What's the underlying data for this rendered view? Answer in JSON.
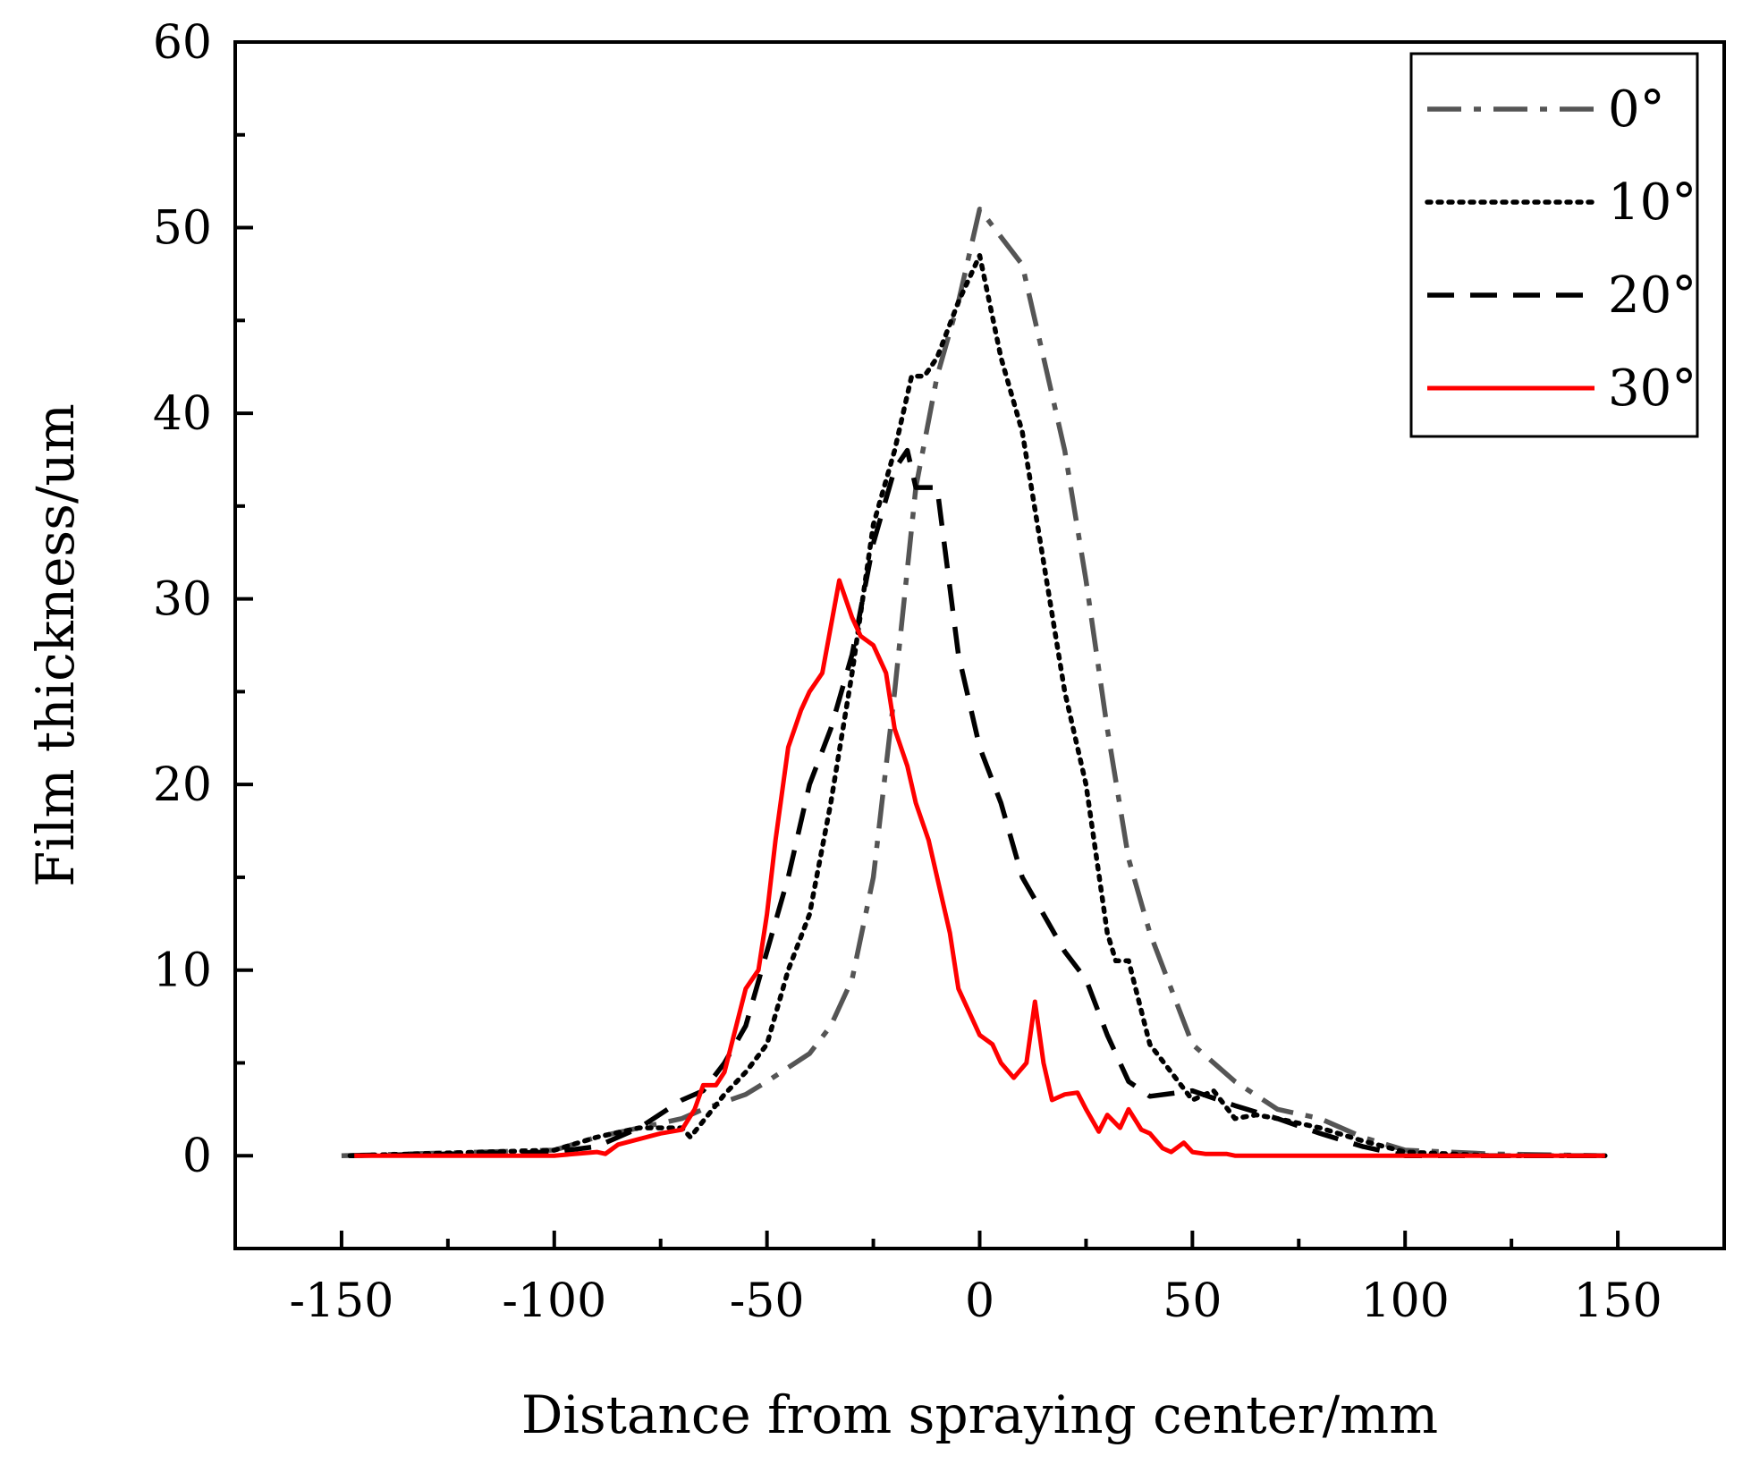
{
  "chart_data": {
    "type": "line",
    "title": "",
    "xlabel": "Distance from spraying center/mm",
    "ylabel": "Film thickness/um",
    "xlim": [
      -175,
      175
    ],
    "ylim": [
      -5,
      60
    ],
    "xticks": [
      -150,
      -100,
      -50,
      0,
      50,
      100,
      150
    ],
    "xtick_labels": [
      "-150",
      "-100",
      "-50",
      "0",
      "50",
      "100",
      "150"
    ],
    "yticks": [
      0,
      10,
      20,
      30,
      40,
      50,
      60
    ],
    "ytick_labels": [
      "0",
      "10",
      "20",
      "30",
      "40",
      "50",
      "60"
    ],
    "legend_position": "top-right",
    "series": [
      {
        "name": "0°",
        "color": "#555555",
        "dash": "dashdot",
        "x": [
          -150,
          -100,
          -90,
          -80,
          -70,
          -65,
          -55,
          -50,
          -40,
          -35,
          -30,
          -25,
          -20,
          -15,
          -10,
          -5,
          0,
          10,
          15,
          20,
          25,
          30,
          35,
          40,
          50,
          60,
          70,
          80,
          90,
          100,
          120,
          147
        ],
        "y": [
          0,
          0.3,
          1,
          1.5,
          2,
          2.5,
          3.3,
          4,
          5.5,
          7,
          9.5,
          15,
          25,
          36,
          42,
          46,
          51,
          48,
          43,
          38,
          31,
          23,
          16,
          12,
          6,
          4,
          2.5,
          2,
          1,
          0.3,
          0.1,
          0
        ]
      },
      {
        "name": "10°",
        "color": "#000000",
        "dash": "dotted",
        "x": [
          -148,
          -100,
          -90,
          -80,
          -70,
          -68,
          -60,
          -55,
          -50,
          -45,
          -40,
          -35,
          -30,
          -25,
          -20,
          -16,
          -13,
          -10,
          -5,
          0,
          5,
          10,
          15,
          20,
          25,
          30,
          32,
          35,
          40,
          45,
          50,
          55,
          60,
          65,
          70,
          80,
          90,
          100,
          120,
          147
        ],
        "y": [
          0,
          0.3,
          1,
          1.5,
          1.5,
          1,
          3.3,
          4.5,
          6,
          10,
          13,
          19,
          26,
          34,
          38,
          42,
          42,
          43,
          46,
          48.5,
          43,
          39,
          32,
          25,
          20,
          12,
          10.5,
          10.5,
          6,
          4.5,
          3,
          3.5,
          2,
          2.2,
          2,
          1.5,
          0.8,
          0.2,
          0,
          0
        ]
      },
      {
        "name": "20°",
        "color": "#000000",
        "dash": "dashed",
        "x": [
          -148,
          -100,
          -90,
          -80,
          -70,
          -65,
          -60,
          -55,
          -50,
          -45,
          -40,
          -35,
          -30,
          -25,
          -20,
          -17,
          -15,
          -10,
          -5,
          0,
          5,
          10,
          15,
          20,
          25,
          30,
          35,
          40,
          50,
          60,
          70,
          80,
          90,
          100,
          147
        ],
        "y": [
          0,
          0.2,
          0.5,
          1.5,
          3,
          3.5,
          5,
          7,
          11,
          15,
          20,
          23,
          27,
          33,
          37,
          38,
          36,
          36,
          27,
          22,
          19,
          15,
          13,
          11,
          9.5,
          6.5,
          4,
          3.2,
          3.5,
          2.7,
          2,
          1.2,
          0.5,
          0,
          0
        ]
      },
      {
        "name": "30°",
        "color": "#ff0000",
        "dash": "solid",
        "x": [
          -147,
          -100,
          -90,
          -88,
          -85,
          -80,
          -75,
          -70,
          -67,
          -65,
          -62,
          -60,
          -55,
          -52,
          -50,
          -48,
          -45,
          -42,
          -40,
          -37,
          -33,
          -30,
          -28,
          -25,
          -22,
          -20,
          -17,
          -15,
          -12,
          -10,
          -7,
          -5,
          0,
          3,
          5,
          8,
          11,
          13,
          15,
          17,
          20,
          23,
          25,
          28,
          30,
          33,
          35,
          38,
          40,
          43,
          45,
          48,
          50,
          53,
          55,
          58,
          60,
          63,
          65,
          68,
          70,
          73,
          75,
          80,
          90,
          100,
          147
        ],
        "y": [
          0,
          0,
          0.2,
          0.1,
          0.6,
          0.9,
          1.2,
          1.4,
          2.5,
          3.8,
          3.8,
          4.5,
          9,
          10,
          13,
          17,
          22,
          24,
          25,
          26,
          31,
          29,
          28,
          27.5,
          26,
          23,
          21,
          19,
          17,
          15,
          12,
          9,
          6.5,
          6,
          5,
          4.2,
          5,
          8.3,
          5,
          3,
          3.3,
          3.4,
          2.5,
          1.3,
          2.2,
          1.5,
          2.5,
          1.4,
          1.2,
          0.4,
          0.2,
          0.7,
          0.2,
          0.1,
          0.1,
          0.1,
          0,
          0,
          0,
          0,
          0,
          0,
          0,
          0,
          0,
          0,
          0
        ]
      }
    ]
  }
}
